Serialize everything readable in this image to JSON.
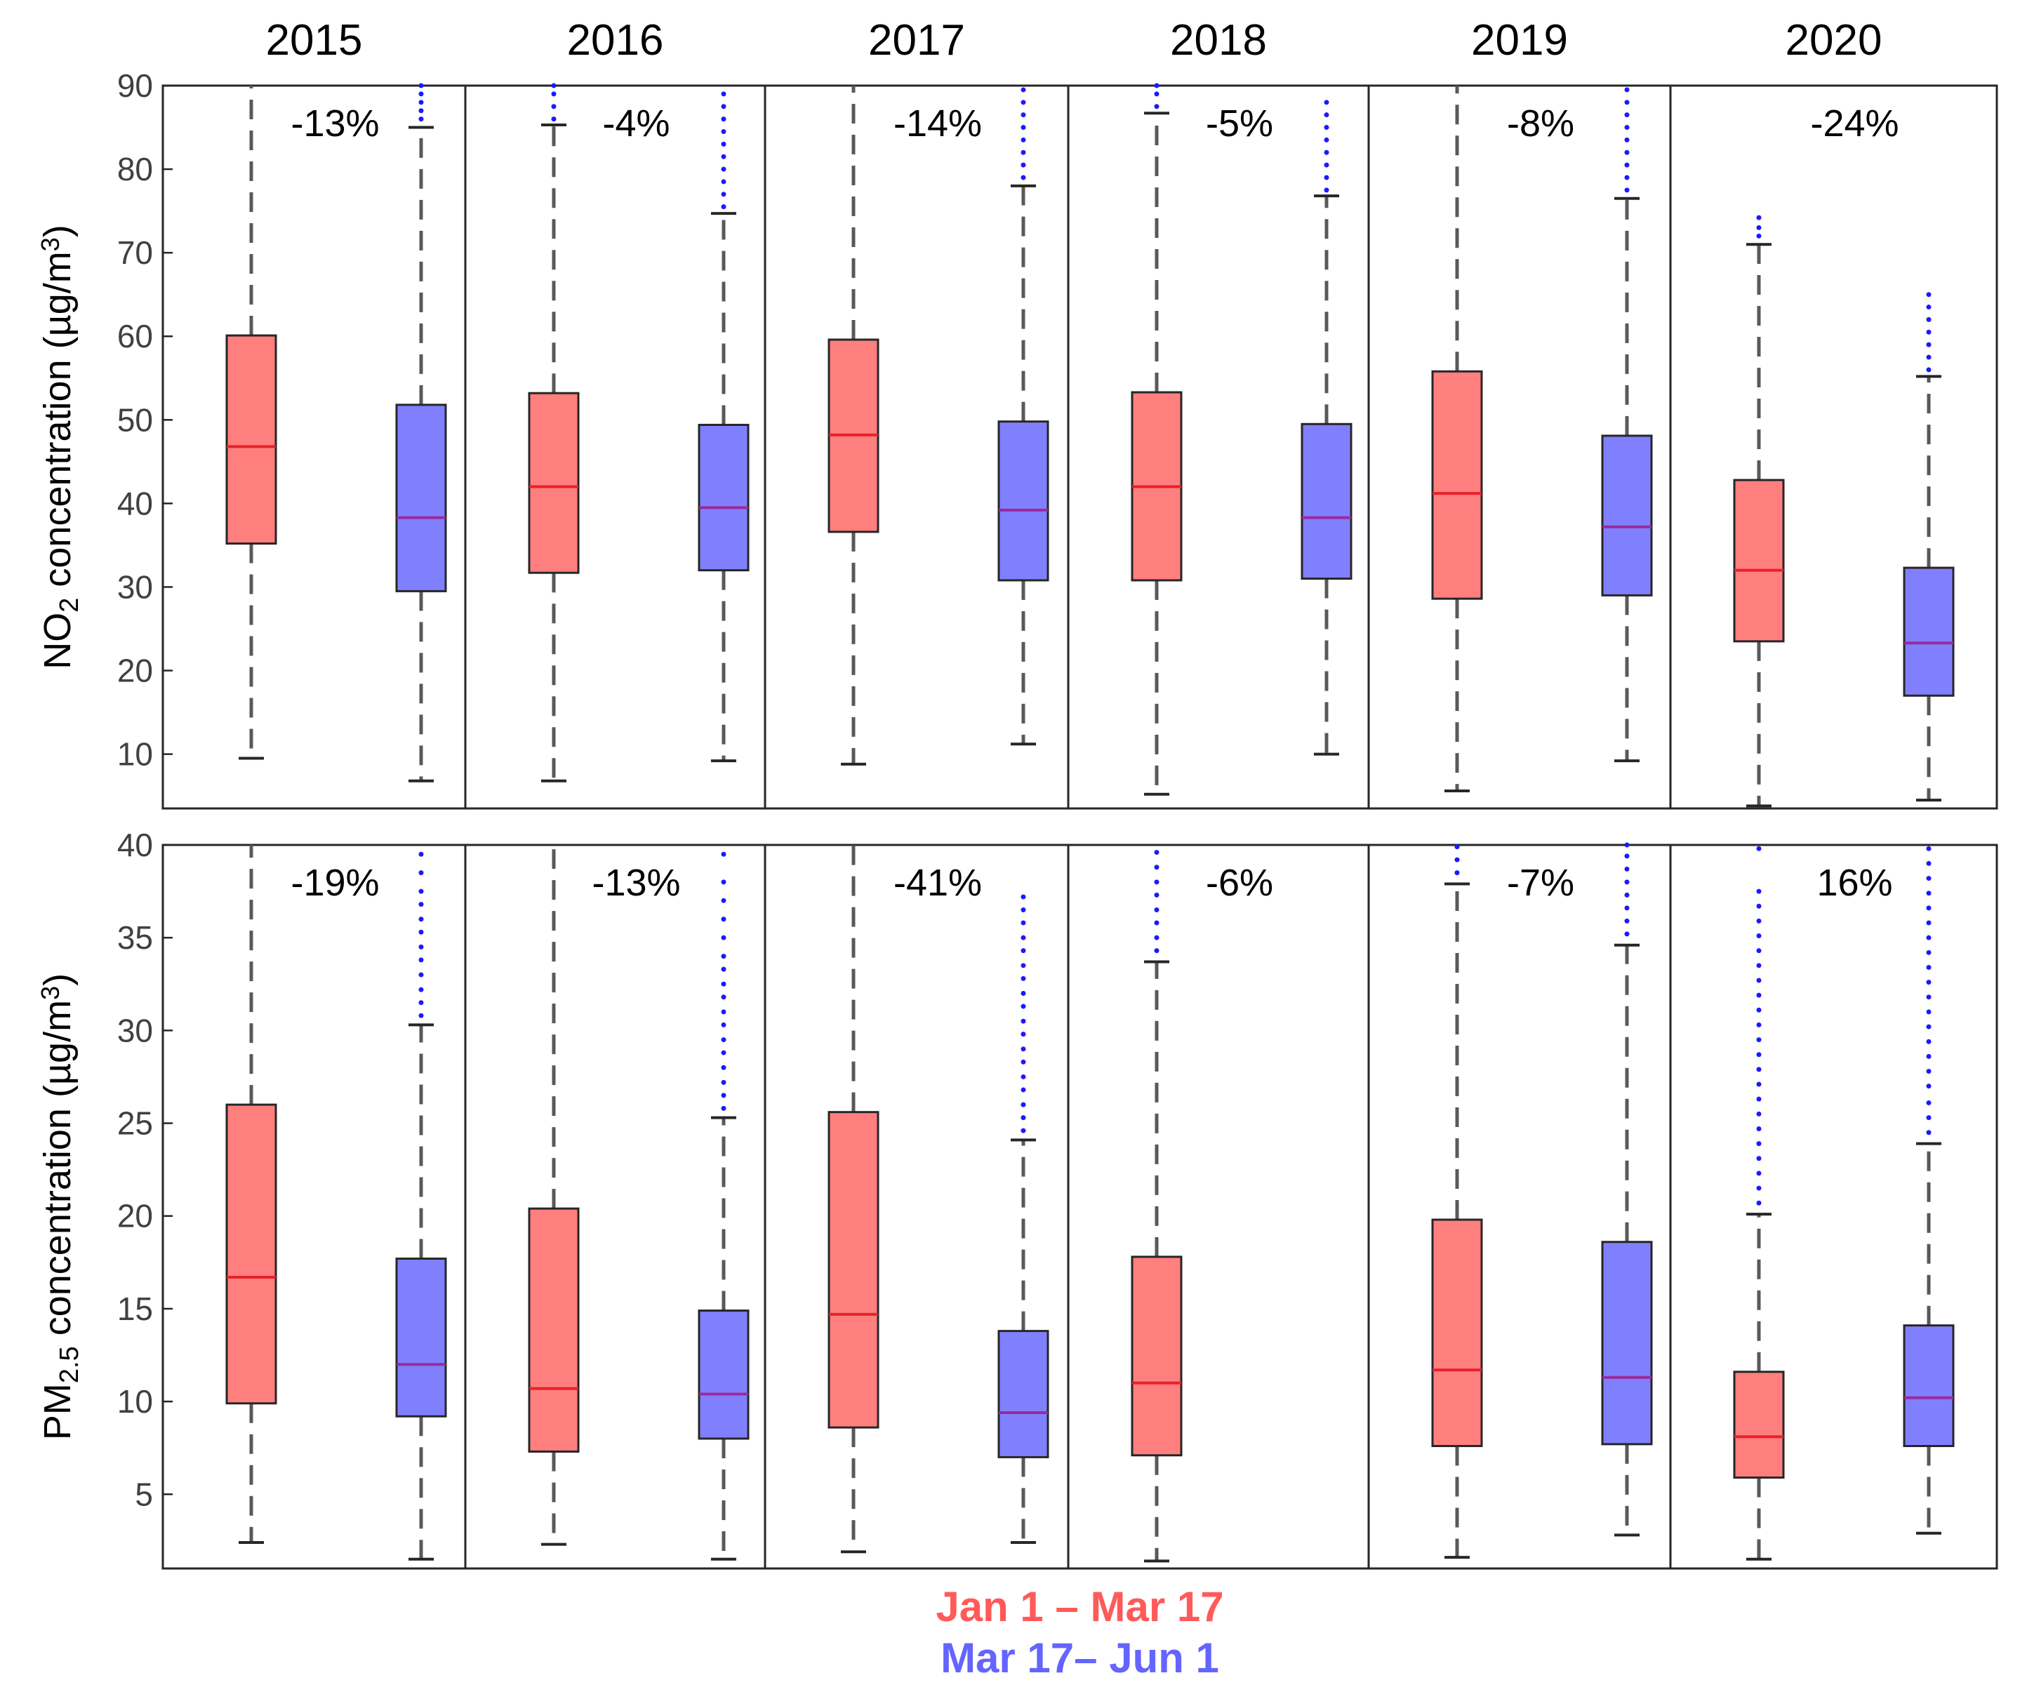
{
  "chart_data": {
    "type": "box",
    "years": [
      "2015",
      "2016",
      "2017",
      "2018",
      "2019",
      "2020"
    ],
    "legend": [
      {
        "label": "Jan 1 – Mar 17",
        "color": "#ff5a5a",
        "box_color": "#ff7f7f",
        "median_color": "#e8202a"
      },
      {
        "label": "Mar 17– Jun 1",
        "color": "#6464ff",
        "box_color": "#8080ff",
        "median_color": "#9a2a9a"
      }
    ],
    "panels": [
      {
        "id": "no2",
        "ylabel_main": "NO",
        "ylabel_sub": "2",
        "ylabel_rest": " concentration (µg/m",
        "ylabel_sup": "3",
        "ylabel_end": ")",
        "ylim": [
          3.5,
          90
        ],
        "yticks": [
          "10",
          "20",
          "30",
          "40",
          "50",
          "60",
          "70",
          "80",
          "90"
        ],
        "annotations": [
          "-13%",
          "-4%",
          "-14%",
          "-5%",
          "-8%",
          "-24%"
        ],
        "groups": [
          {
            "year": "2015",
            "before": {
              "whislo": 9.5,
              "q1": 35.2,
              "med": 46.8,
              "q3": 60.1,
              "whishi": 90,
              "fliers": []
            },
            "after": {
              "whislo": 6.8,
              "q1": 29.5,
              "med": 38.3,
              "q3": 51.8,
              "whishi": 85.0,
              "fliers": [
                86,
                87,
                88,
                89,
                90
              ]
            }
          },
          {
            "year": "2016",
            "before": {
              "whislo": 6.8,
              "q1": 31.7,
              "med": 42.0,
              "q3": 53.2,
              "whishi": 85.3,
              "fliers": [
                86,
                87.5,
                89,
                90
              ]
            },
            "after": {
              "whislo": 9.2,
              "q1": 32.0,
              "med": 39.5,
              "q3": 49.4,
              "whishi": 74.7,
              "fliers": [
                75.5,
                77,
                78.5,
                80,
                81.5,
                83,
                84.5,
                86,
                87.5,
                89
              ]
            }
          },
          {
            "year": "2017",
            "before": {
              "whislo": 8.8,
              "q1": 36.6,
              "med": 48.2,
              "q3": 59.6,
              "whishi": 90,
              "fliers": []
            },
            "after": {
              "whislo": 11.2,
              "q1": 30.8,
              "med": 39.2,
              "q3": 49.8,
              "whishi": 78.0,
              "fliers": [
                79,
                80.5,
                82,
                83.5,
                85,
                86.5,
                88,
                89.5
              ]
            }
          },
          {
            "year": "2018",
            "before": {
              "whislo": 5.2,
              "q1": 30.8,
              "med": 42.0,
              "q3": 53.3,
              "whishi": 86.7,
              "fliers": [
                87.5,
                89,
                90
              ]
            },
            "after": {
              "whislo": 10.0,
              "q1": 31.0,
              "med": 38.3,
              "q3": 49.5,
              "whishi": 76.8,
              "fliers": [
                77.5,
                79,
                80.5,
                82,
                83.5,
                85,
                86.5,
                88
              ]
            }
          },
          {
            "year": "2019",
            "before": {
              "whislo": 5.6,
              "q1": 28.6,
              "med": 41.2,
              "q3": 55.8,
              "whishi": 90,
              "fliers": []
            },
            "after": {
              "whislo": 9.2,
              "q1": 29.0,
              "med": 37.2,
              "q3": 48.1,
              "whishi": 76.5,
              "fliers": [
                77.5,
                79,
                80.5,
                82,
                83.5,
                85,
                86.5,
                88,
                89.5
              ]
            }
          },
          {
            "year": "2020",
            "before": {
              "whislo": 3.8,
              "q1": 23.5,
              "med": 32.0,
              "q3": 42.8,
              "whishi": 71.0,
              "fliers": [
                72,
                73,
                74.2
              ]
            },
            "after": {
              "whislo": 4.5,
              "q1": 17.0,
              "med": 23.3,
              "q3": 32.3,
              "whishi": 55.2,
              "fliers": [
                56,
                57.5,
                59,
                60.5,
                62,
                63.5,
                65
              ]
            }
          }
        ]
      },
      {
        "id": "pm25",
        "ylabel_main": "PM",
        "ylabel_sub": "2.5",
        "ylabel_rest": " concentration (µg/m",
        "ylabel_sup": "3",
        "ylabel_end": ")",
        "ylim": [
          1,
          40
        ],
        "yticks": [
          "5",
          "10",
          "15",
          "20",
          "25",
          "30",
          "35",
          "40"
        ],
        "annotations": [
          "-19%",
          "-13%",
          "-41%",
          "-6%",
          "-7%",
          "16%"
        ],
        "groups": [
          {
            "year": "2015",
            "before": {
              "whislo": 2.4,
              "q1": 9.9,
              "med": 16.7,
              "q3": 26.0,
              "whishi": 40,
              "fliers": []
            },
            "after": {
              "whislo": 1.5,
              "q1": 9.2,
              "med": 12.0,
              "q3": 17.7,
              "whishi": 30.3,
              "fliers": [
                30.8,
                31.5,
                32.2,
                33,
                33.8,
                34.5,
                35.3,
                36,
                36.8,
                37.5,
                38.5,
                39.5
              ]
            }
          },
          {
            "year": "2016",
            "before": {
              "whislo": 2.3,
              "q1": 7.3,
              "med": 10.7,
              "q3": 20.4,
              "whishi": 40,
              "fliers": []
            },
            "after": {
              "whislo": 1.5,
              "q1": 8.0,
              "med": 10.4,
              "q3": 14.9,
              "whishi": 25.3,
              "fliers": [
                25.8,
                26.5,
                27.2,
                28,
                28.8,
                29.5,
                30.3,
                31,
                31.8,
                32.5,
                33.3,
                34,
                35,
                36,
                37,
                38,
                39.5
              ]
            }
          },
          {
            "year": "2017",
            "before": {
              "whislo": 1.9,
              "q1": 8.6,
              "med": 14.7,
              "q3": 25.6,
              "whishi": 40,
              "fliers": []
            },
            "after": {
              "whislo": 2.4,
              "q1": 7.0,
              "med": 9.4,
              "q3": 13.8,
              "whishi": 24.1,
              "fliers": [
                24.6,
                25.3,
                26,
                26.8,
                27.5,
                28.3,
                29,
                29.8,
                30.5,
                31.3,
                32,
                32.8,
                33.5,
                34.3,
                35,
                35.8,
                36.5,
                37.2
              ]
            }
          },
          {
            "year": "2018",
            "before": {
              "whislo": 1.4,
              "q1": 7.1,
              "med": 11.0,
              "q3": 17.8,
              "whishi": 33.7,
              "fliers": [
                34.3,
                35,
                35.8,
                36.5,
                37.3,
                38,
                38.8,
                39.6
              ]
            }
          },
          {
            "year": "2019",
            "before": {
              "whislo": 1.6,
              "q1": 7.6,
              "med": 11.7,
              "q3": 19.8,
              "whishi": 37.9,
              "fliers": [
                38.5,
                39.2,
                39.9
              ]
            },
            "after": {
              "whislo": 2.8,
              "q1": 7.7,
              "med": 11.3,
              "q3": 18.6,
              "whishi": 34.6,
              "fliers": [
                35.2,
                35.9,
                36.6,
                37.3,
                38,
                38.7,
                39.4,
                40
              ]
            }
          },
          {
            "year": "2020",
            "before": {
              "whislo": 1.5,
              "q1": 5.9,
              "med": 8.1,
              "q3": 11.6,
              "whishi": 20.1,
              "fliers": [
                20.7,
                21.5,
                22.3,
                23.1,
                23.9,
                24.7,
                25.5,
                26.3,
                27.1,
                27.9,
                28.7,
                29.5,
                30.3,
                31.1,
                31.9,
                32.7,
                33.5,
                34.3,
                35.1,
                35.9,
                36.7,
                37.5,
                39.8
              ]
            },
            "after": {
              "whislo": 2.9,
              "q1": 7.6,
              "med": 10.2,
              "q3": 14.1,
              "whishi": 23.9,
              "fliers": [
                24.5,
                25.3,
                26.1,
                27,
                27.8,
                28.6,
                29.4,
                30.2,
                31,
                31.8,
                32.6,
                33.4,
                34.2,
                35,
                35.8,
                36.6,
                37.4,
                38.2,
                39,
                39.8
              ]
            }
          }
        ]
      }
    ]
  }
}
